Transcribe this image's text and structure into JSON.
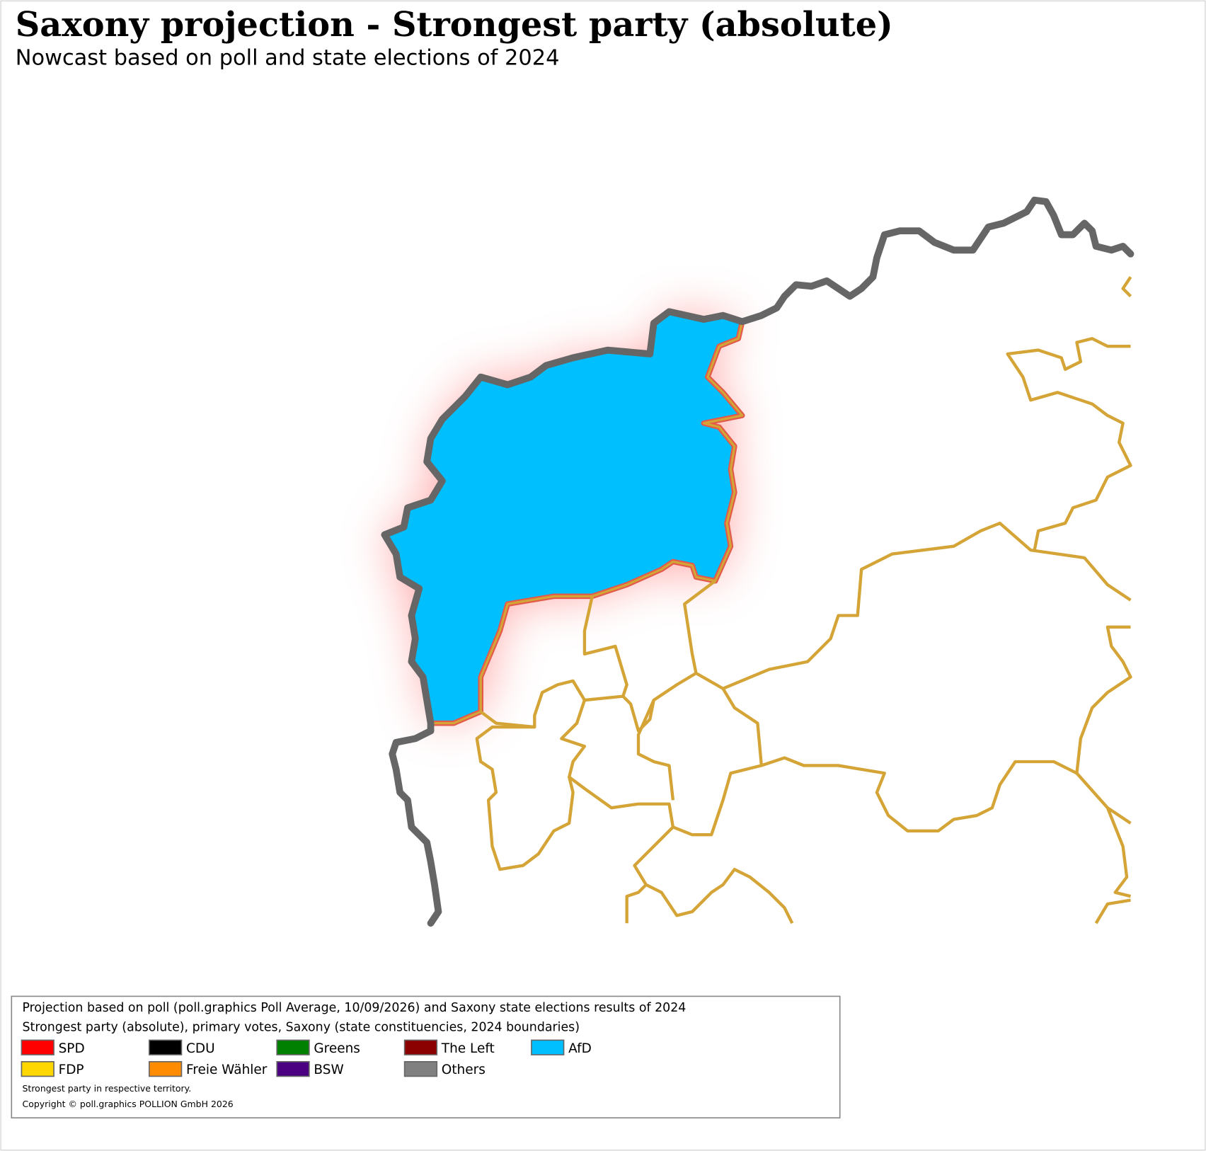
{
  "header": {
    "title": "Saxony projection - Strongest party (absolute)",
    "subtitle": "Nowcast based on poll and state elections of 2024"
  },
  "legend": {
    "lines": [
      "Projection based on poll (poll.graphics Poll Average, 10/09/2026) and Saxony state elections results of 2024",
      "Strongest party (absolute), primary votes, Saxony (state constituencies, 2024 boundaries)"
    ],
    "entries": [
      {
        "name": "SPD",
        "color": "#ff0000"
      },
      {
        "name": "CDU",
        "color": "#000000"
      },
      {
        "name": "Greens",
        "color": "#008000"
      },
      {
        "name": "The Left",
        "color": "#8b0000"
      },
      {
        "name": "AfD",
        "color": "#00bfff"
      },
      {
        "name": "FDP",
        "color": "#ffd700"
      },
      {
        "name": "Freie Wähler",
        "color": "#ff8c00"
      },
      {
        "name": "BSW",
        "color": "#4b0082"
      },
      {
        "name": "Others",
        "color": "#808080"
      }
    ],
    "notes": [
      "Strongest party in respective territory.",
      "Copyright © poll.graphics POLLION GmbH 2026"
    ]
  }
}
